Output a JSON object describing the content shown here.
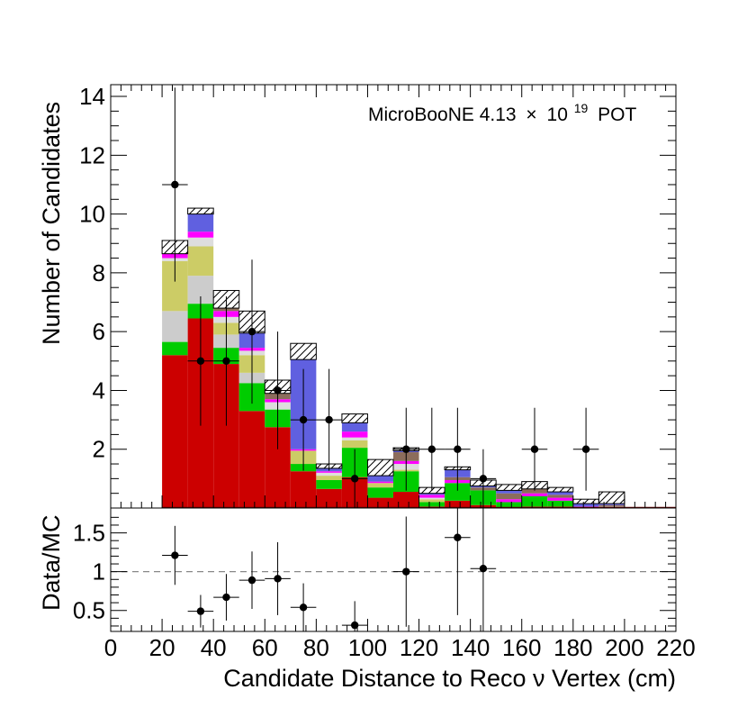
{
  "chart_data": [
    {
      "type": "bar",
      "stacked": true,
      "ylabel": "Number of Candidates",
      "ylim": [
        0,
        14.4
      ],
      "yticks": [
        "2",
        "4",
        "6",
        "8",
        "10",
        "12",
        "14"
      ],
      "annotation": {
        "prefix": "MicroBooNE 4.13",
        "times": "×",
        "base": "10",
        "exponent": "19",
        "suffix": "POT"
      },
      "bins": [
        [
          20,
          30
        ],
        [
          30,
          40
        ],
        [
          40,
          50
        ],
        [
          50,
          60
        ],
        [
          60,
          70
        ],
        [
          70,
          80
        ],
        [
          80,
          90
        ],
        [
          90,
          100
        ],
        [
          100,
          110
        ],
        [
          110,
          120
        ],
        [
          120,
          130
        ],
        [
          130,
          140
        ],
        [
          140,
          150
        ],
        [
          150,
          160
        ],
        [
          160,
          170
        ],
        [
          170,
          180
        ],
        [
          180,
          190
        ],
        [
          190,
          200
        ]
      ],
      "series": [
        {
          "name": "red",
          "color": "#cc0000",
          "values": [
            5.2,
            6.45,
            4.9,
            3.3,
            2.75,
            1.25,
            0.65,
            1.05,
            0.35,
            0.55,
            0.05,
            0.25,
            0.1,
            0.0,
            0.05,
            0.05,
            0.0,
            0.0
          ]
        },
        {
          "name": "green",
          "color": "#00cc00",
          "values": [
            0.45,
            0.5,
            0.55,
            0.95,
            0.6,
            0.25,
            0.3,
            1.0,
            0.35,
            0.7,
            0.15,
            0.6,
            0.5,
            0.2,
            0.35,
            0.2,
            0.0,
            0.0
          ]
        },
        {
          "name": "light-grey",
          "color": "#cccccc",
          "values": [
            1.05,
            0.95,
            0.45,
            0.35,
            0.0,
            0.0,
            0.0,
            0.0,
            0.0,
            0.0,
            0.0,
            0.0,
            0.0,
            0.0,
            0.0,
            0.0,
            0.0,
            0.0
          ]
        },
        {
          "name": "olive",
          "color": "#cccc66",
          "values": [
            1.7,
            1.0,
            0.4,
            0.6,
            0.0,
            0.45,
            0.15,
            0.25,
            0.15,
            0.05,
            0.1,
            0.0,
            0.0,
            0.0,
            0.0,
            0.0,
            0.0,
            0.0
          ]
        },
        {
          "name": "grey",
          "color": "#dddddd",
          "values": [
            0.1,
            0.3,
            0.2,
            0.15,
            0.25,
            0.0,
            0.1,
            0.1,
            0.0,
            0.2,
            0.05,
            0.0,
            0.0,
            0.0,
            0.0,
            0.0,
            0.0,
            0.05
          ]
        },
        {
          "name": "magenta",
          "color": "#ff00ff",
          "values": [
            0.15,
            0.2,
            0.2,
            0.1,
            0.1,
            0.05,
            0.05,
            0.2,
            0.05,
            0.1,
            0.1,
            0.1,
            0.0,
            0.1,
            0.1,
            0.1,
            0.05,
            0.0
          ]
        },
        {
          "name": "brown",
          "color": "#8c6d5c",
          "values": [
            0.0,
            0.0,
            0.1,
            0.0,
            0.2,
            0.0,
            0.0,
            0.0,
            0.0,
            0.3,
            0.0,
            0.1,
            0.1,
            0.2,
            0.15,
            0.1,
            0.0,
            0.05
          ]
        },
        {
          "name": "blue",
          "color": "#6060e0",
          "values": [
            0.0,
            0.6,
            0.0,
            0.5,
            0.0,
            3.05,
            0.1,
            0.3,
            0.2,
            0.05,
            0.05,
            0.25,
            0.05,
            0.1,
            0.0,
            0.1,
            0.1,
            0.05
          ]
        }
      ],
      "uncertainty_top": [
        9.1,
        10.2,
        7.4,
        6.7,
        4.35,
        5.6,
        1.5,
        3.2,
        1.65,
        2.05,
        0.7,
        1.4,
        0.95,
        0.8,
        0.9,
        0.7,
        0.3,
        0.55
      ],
      "data_points": [
        {
          "x": 25,
          "y": 11,
          "err": 3.3
        },
        {
          "x": 35,
          "y": 5,
          "err": 2.2
        },
        {
          "x": 45,
          "y": 5,
          "err": 2.2
        },
        {
          "x": 55,
          "y": 6,
          "err": 2.45
        },
        {
          "x": 65,
          "y": 4,
          "err": 2.0
        },
        {
          "x": 75,
          "y": 3,
          "err": 1.73
        },
        {
          "x": 85,
          "y": 3,
          "err": 1.73
        },
        {
          "x": 95,
          "y": 1,
          "err": 1.0
        },
        {
          "x": 115,
          "y": 2,
          "err": 1.41
        },
        {
          "x": 125,
          "y": 2,
          "err": 1.41
        },
        {
          "x": 135,
          "y": 2,
          "err": 1.41
        },
        {
          "x": 145,
          "y": 1,
          "err": 1.0
        },
        {
          "x": 165,
          "y": 2,
          "err": 1.41
        },
        {
          "x": 185,
          "y": 2,
          "err": 1.41
        }
      ]
    },
    {
      "type": "scatter",
      "ylabel": "Data/MC",
      "xlabel": "Candidate Distance to Reco ν Vertex (cm)",
      "xlim": [
        0,
        220
      ],
      "ylim": [
        0.23,
        1.82
      ],
      "reference_line": 1,
      "xticks": [
        "0",
        "20",
        "40",
        "60",
        "80",
        "100",
        "120",
        "140",
        "160",
        "180",
        "200",
        "220"
      ],
      "yticks": [
        "0.5",
        "1",
        "1.5"
      ],
      "points": [
        {
          "x": 25,
          "y": 1.21,
          "err": 0.38
        },
        {
          "x": 35,
          "y": 0.49,
          "err": 0.21
        },
        {
          "x": 45,
          "y": 0.67,
          "err": 0.3
        },
        {
          "x": 55,
          "y": 0.89,
          "err": 0.37
        },
        {
          "x": 65,
          "y": 0.91,
          "err": 0.47
        },
        {
          "x": 75,
          "y": 0.54,
          "err": 0.31
        },
        {
          "x": 95,
          "y": 0.31,
          "err": 0.31
        },
        {
          "x": 115,
          "y": 1.0,
          "err": 0.71
        },
        {
          "x": 135,
          "y": 1.44,
          "err": 1.0
        },
        {
          "x": 145,
          "y": 1.04,
          "err": 1.04
        }
      ]
    }
  ]
}
